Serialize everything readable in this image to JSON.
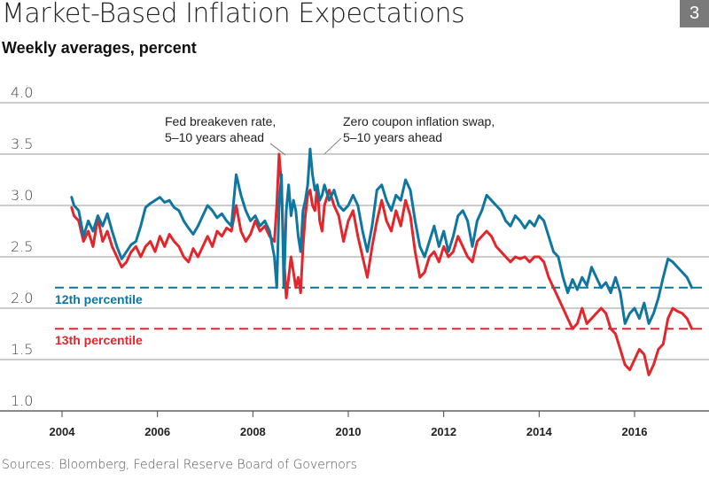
{
  "header": {
    "title": "Market-Based Inflation Expectations",
    "subtitle": "Weekly averages, percent",
    "badge": "3"
  },
  "footer": {
    "source": "Sources: Bloomberg, Federal Reserve Board of Governors"
  },
  "chart_data": {
    "type": "line",
    "title": "Market-Based Inflation Expectations",
    "subtitle": "Weekly averages, percent",
    "xlabel": "",
    "ylabel": "",
    "xlim": [
      2003.3,
      2017.3
    ],
    "ylim": [
      1.0,
      4.0
    ],
    "grid": true,
    "y_ticks": [
      "1.0",
      "1.5",
      "2.0",
      "2.5",
      "3.0",
      "3.5",
      "4.0"
    ],
    "y_tick_values": [
      1.0,
      1.5,
      2.0,
      2.5,
      3.0,
      3.5,
      4.0
    ],
    "x_ticks": [
      "2004",
      "2006",
      "2008",
      "2010",
      "2012",
      "2014",
      "2016"
    ],
    "x_tick_values": [
      2004,
      2006,
      2008,
      2010,
      2012,
      2014,
      2016
    ],
    "colors": {
      "swap": "#0f76a0",
      "breakeven": "#e3262b",
      "grid": "#999999",
      "axis": "#444444"
    },
    "series": [
      {
        "name": "Zero coupon inflation swap, 5–10 years ahead",
        "color": "#0f76a0",
        "x": [
          2004.2,
          2004.25,
          2004.35,
          2004.45,
          2004.55,
          2004.65,
          2004.75,
          2004.85,
          2004.95,
          2005.05,
          2005.15,
          2005.25,
          2005.35,
          2005.45,
          2005.55,
          2005.65,
          2005.75,
          2005.85,
          2005.95,
          2006.05,
          2006.15,
          2006.25,
          2006.35,
          2006.45,
          2006.55,
          2006.65,
          2006.75,
          2006.85,
          2006.95,
          2007.05,
          2007.15,
          2007.25,
          2007.35,
          2007.45,
          2007.55,
          2007.65,
          2007.75,
          2007.85,
          2007.95,
          2008.05,
          2008.15,
          2008.25,
          2008.35,
          2008.45,
          2008.5,
          2008.55,
          2008.6,
          2008.65,
          2008.7,
          2008.75,
          2008.8,
          2008.85,
          2008.9,
          2008.95,
          2009.0,
          2009.05,
          2009.1,
          2009.15,
          2009.2,
          2009.25,
          2009.3,
          2009.35,
          2009.4,
          2009.45,
          2009.5,
          2009.6,
          2009.7,
          2009.8,
          2009.9,
          2010.0,
          2010.1,
          2010.2,
          2010.3,
          2010.4,
          2010.5,
          2010.6,
          2010.7,
          2010.8,
          2010.9,
          2011.0,
          2011.1,
          2011.2,
          2011.3,
          2011.4,
          2011.5,
          2011.6,
          2011.7,
          2011.8,
          2011.9,
          2012.0,
          2012.1,
          2012.2,
          2012.3,
          2012.4,
          2012.5,
          2012.6,
          2012.7,
          2012.8,
          2012.9,
          2013.0,
          2013.1,
          2013.2,
          2013.3,
          2013.4,
          2013.5,
          2013.6,
          2013.7,
          2013.8,
          2013.9,
          2014.0,
          2014.1,
          2014.2,
          2014.3,
          2014.4,
          2014.5,
          2014.6,
          2014.7,
          2014.8,
          2014.9,
          2015.0,
          2015.1,
          2015.2,
          2015.3,
          2015.4,
          2015.5,
          2015.6,
          2015.7,
          2015.8,
          2015.9,
          2016.0,
          2016.1,
          2016.2,
          2016.3,
          2016.4,
          2016.5,
          2016.6,
          2016.7,
          2016.8,
          2016.9,
          2017.0,
          2017.1,
          2017.2
        ],
        "values": [
          3.08,
          3.0,
          2.95,
          2.7,
          2.85,
          2.75,
          2.9,
          2.8,
          2.92,
          2.75,
          2.6,
          2.48,
          2.55,
          2.62,
          2.65,
          2.8,
          2.98,
          3.02,
          3.05,
          3.08,
          3.03,
          3.05,
          2.98,
          2.95,
          2.85,
          2.78,
          2.72,
          2.8,
          2.9,
          3.0,
          2.95,
          2.88,
          2.92,
          2.85,
          2.8,
          3.3,
          3.1,
          2.95,
          2.85,
          2.9,
          2.8,
          2.85,
          2.75,
          2.5,
          2.2,
          3.0,
          3.3,
          2.2,
          2.95,
          3.2,
          2.9,
          3.05,
          2.95,
          2.7,
          2.55,
          2.95,
          3.05,
          3.2,
          3.55,
          3.3,
          3.15,
          3.2,
          3.05,
          3.1,
          3.2,
          3.05,
          3.15,
          3.0,
          2.95,
          3.0,
          3.1,
          3.0,
          2.75,
          2.55,
          2.8,
          3.15,
          3.2,
          3.05,
          2.95,
          3.1,
          3.05,
          3.25,
          3.15,
          2.85,
          2.6,
          2.5,
          2.65,
          2.8,
          2.6,
          2.75,
          2.55,
          2.7,
          2.9,
          2.95,
          2.85,
          2.6,
          2.85,
          2.95,
          3.1,
          3.05,
          3.0,
          2.95,
          2.85,
          2.8,
          2.9,
          2.85,
          2.78,
          2.85,
          2.8,
          2.9,
          2.85,
          2.7,
          2.55,
          2.5,
          2.3,
          2.15,
          2.28,
          2.18,
          2.3,
          2.22,
          2.4,
          2.3,
          2.2,
          2.25,
          2.15,
          2.3,
          2.15,
          1.85,
          1.95,
          2.0,
          1.9,
          2.05,
          1.85,
          1.95,
          2.1,
          2.3,
          2.48,
          2.45,
          2.4,
          2.35,
          2.3,
          2.2
        ]
      },
      {
        "name": "Fed breakeven rate, 5–10 years ahead",
        "color": "#e3262b",
        "x": [
          2004.2,
          2004.25,
          2004.35,
          2004.45,
          2004.55,
          2004.65,
          2004.75,
          2004.85,
          2004.95,
          2005.05,
          2005.15,
          2005.25,
          2005.35,
          2005.45,
          2005.55,
          2005.65,
          2005.75,
          2005.85,
          2005.95,
          2006.05,
          2006.15,
          2006.25,
          2006.35,
          2006.45,
          2006.55,
          2006.65,
          2006.75,
          2006.85,
          2006.95,
          2007.05,
          2007.15,
          2007.25,
          2007.35,
          2007.45,
          2007.55,
          2007.65,
          2007.75,
          2007.85,
          2007.95,
          2008.05,
          2008.15,
          2008.25,
          2008.35,
          2008.45,
          2008.5,
          2008.55,
          2008.6,
          2008.65,
          2008.7,
          2008.75,
          2008.8,
          2008.85,
          2008.9,
          2008.95,
          2009.0,
          2009.05,
          2009.1,
          2009.15,
          2009.2,
          2009.25,
          2009.3,
          2009.35,
          2009.4,
          2009.45,
          2009.5,
          2009.6,
          2009.7,
          2009.8,
          2009.9,
          2010.0,
          2010.1,
          2010.2,
          2010.3,
          2010.4,
          2010.5,
          2010.6,
          2010.7,
          2010.8,
          2010.9,
          2011.0,
          2011.1,
          2011.2,
          2011.3,
          2011.4,
          2011.5,
          2011.6,
          2011.7,
          2011.8,
          2011.9,
          2012.0,
          2012.1,
          2012.2,
          2012.3,
          2012.4,
          2012.5,
          2012.6,
          2012.7,
          2012.8,
          2012.9,
          2013.0,
          2013.1,
          2013.2,
          2013.3,
          2013.4,
          2013.5,
          2013.6,
          2013.7,
          2013.8,
          2013.9,
          2014.0,
          2014.1,
          2014.2,
          2014.3,
          2014.4,
          2014.5,
          2014.6,
          2014.7,
          2014.8,
          2014.9,
          2015.0,
          2015.1,
          2015.2,
          2015.3,
          2015.4,
          2015.5,
          2015.6,
          2015.7,
          2015.8,
          2015.9,
          2016.0,
          2016.1,
          2016.2,
          2016.3,
          2016.4,
          2016.5,
          2016.6,
          2016.7,
          2016.8,
          2016.9,
          2017.0,
          2017.1,
          2017.2
        ],
        "values": [
          2.98,
          2.9,
          2.85,
          2.65,
          2.75,
          2.6,
          2.88,
          2.65,
          2.75,
          2.6,
          2.5,
          2.4,
          2.45,
          2.55,
          2.6,
          2.5,
          2.6,
          2.65,
          2.55,
          2.7,
          2.6,
          2.72,
          2.65,
          2.6,
          2.5,
          2.45,
          2.58,
          2.5,
          2.6,
          2.7,
          2.6,
          2.75,
          2.7,
          2.78,
          2.75,
          3.0,
          2.75,
          2.65,
          2.72,
          2.85,
          2.75,
          2.8,
          2.7,
          2.65,
          3.0,
          3.5,
          3.2,
          2.5,
          2.1,
          2.3,
          2.5,
          2.35,
          2.2,
          2.3,
          2.15,
          2.6,
          2.9,
          3.1,
          3.15,
          3.0,
          2.95,
          3.2,
          2.85,
          2.75,
          3.0,
          3.15,
          3.0,
          2.9,
          2.65,
          2.85,
          2.95,
          2.7,
          2.5,
          2.3,
          2.6,
          2.85,
          3.05,
          2.85,
          2.75,
          2.95,
          2.8,
          3.05,
          2.9,
          2.55,
          2.3,
          2.35,
          2.5,
          2.55,
          2.45,
          2.6,
          2.5,
          2.55,
          2.7,
          2.6,
          2.5,
          2.45,
          2.65,
          2.7,
          2.75,
          2.7,
          2.6,
          2.55,
          2.5,
          2.45,
          2.5,
          2.48,
          2.5,
          2.45,
          2.5,
          2.5,
          2.45,
          2.3,
          2.2,
          2.1,
          2.0,
          1.9,
          1.8,
          1.85,
          2.0,
          1.85,
          1.9,
          1.95,
          2.0,
          1.95,
          1.8,
          1.75,
          1.6,
          1.45,
          1.4,
          1.5,
          1.6,
          1.55,
          1.35,
          1.45,
          1.6,
          1.65,
          1.9,
          2.0,
          1.97,
          1.95,
          1.9,
          1.8
        ]
      }
    ],
    "reference_lines": [
      {
        "label": "12th percentile",
        "value": 2.2,
        "color": "#0f76a0",
        "style": "dashed"
      },
      {
        "label": "13th percentile",
        "value": 1.8,
        "color": "#e3262b",
        "style": "dashed"
      }
    ],
    "annotations": [
      {
        "lines": [
          "Fed breakeven rate,",
          "5–10 years ahead"
        ],
        "points_to_series": "Fed breakeven rate, 5–10 years ahead",
        "x": 2008.55,
        "y": 3.5
      },
      {
        "lines": [
          "Zero coupon inflation swap,",
          "5–10 years ahead"
        ],
        "points_to_series": "Zero coupon inflation swap, 5–10 years ahead",
        "x": 2009.2,
        "y": 3.55
      }
    ]
  }
}
